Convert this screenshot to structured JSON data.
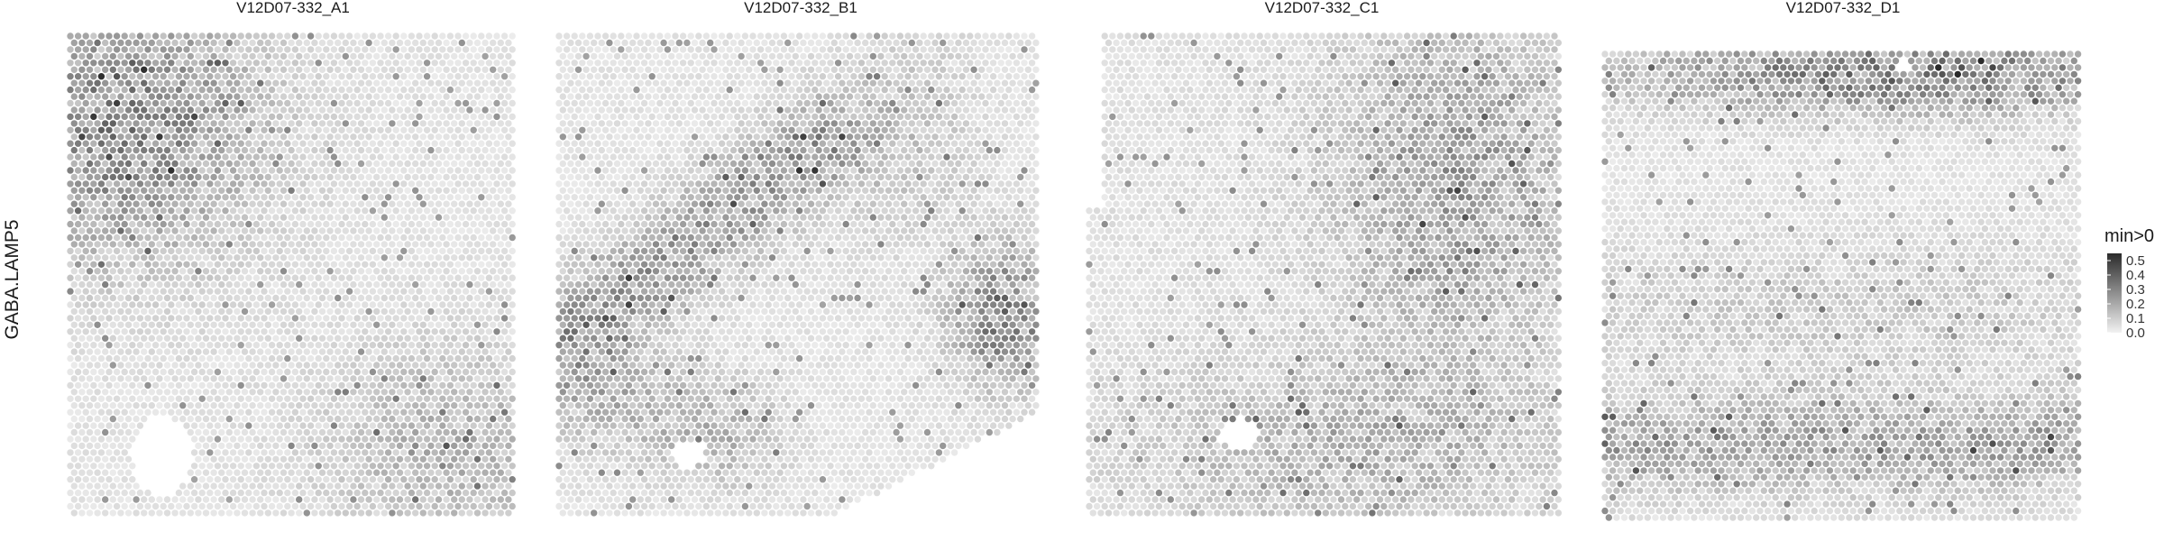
{
  "chart_data": {
    "type": "heatmap",
    "chart_kind": "spatial spot expression map (hexagonal spot grid)",
    "row_label": "GABA.LAMP5",
    "samples": [
      {
        "title": "V12D07-332_A1",
        "description_of_pattern": "highest values in upper-left region, moderate in lower-right; tissue hole near lower-left",
        "max_observed": 0.55
      },
      {
        "title": "V12D07-332_B1",
        "description_of_pattern": "diagonal band of higher values from left-middle to upper-center and a dense cluster at right-middle edge; small hole in lower-left",
        "max_observed": 0.55
      },
      {
        "title": "V12D07-332_C1",
        "description_of_pattern": "moderate values in upper-right and lower-center regions; small hole near lower-left",
        "max_observed": 0.5
      },
      {
        "title": "V12D07-332_D1",
        "description_of_pattern": "strong band along the top edge and a band in the lower third; lighter in the middle",
        "max_observed": 0.55
      }
    ],
    "legend": {
      "title": "min>0",
      "ticks": [
        "0.5",
        "0.4",
        "0.3",
        "0.2",
        "0.1",
        "0.0"
      ],
      "range": [
        0,
        0.55
      ],
      "low_color": "#f2f2f2",
      "high_color": "#2b2b2b",
      "placement": "right"
    },
    "grid": false,
    "colors": {
      "background": "#ffffff",
      "low": "#f2f2f2",
      "high": "#2b2b2b"
    }
  }
}
